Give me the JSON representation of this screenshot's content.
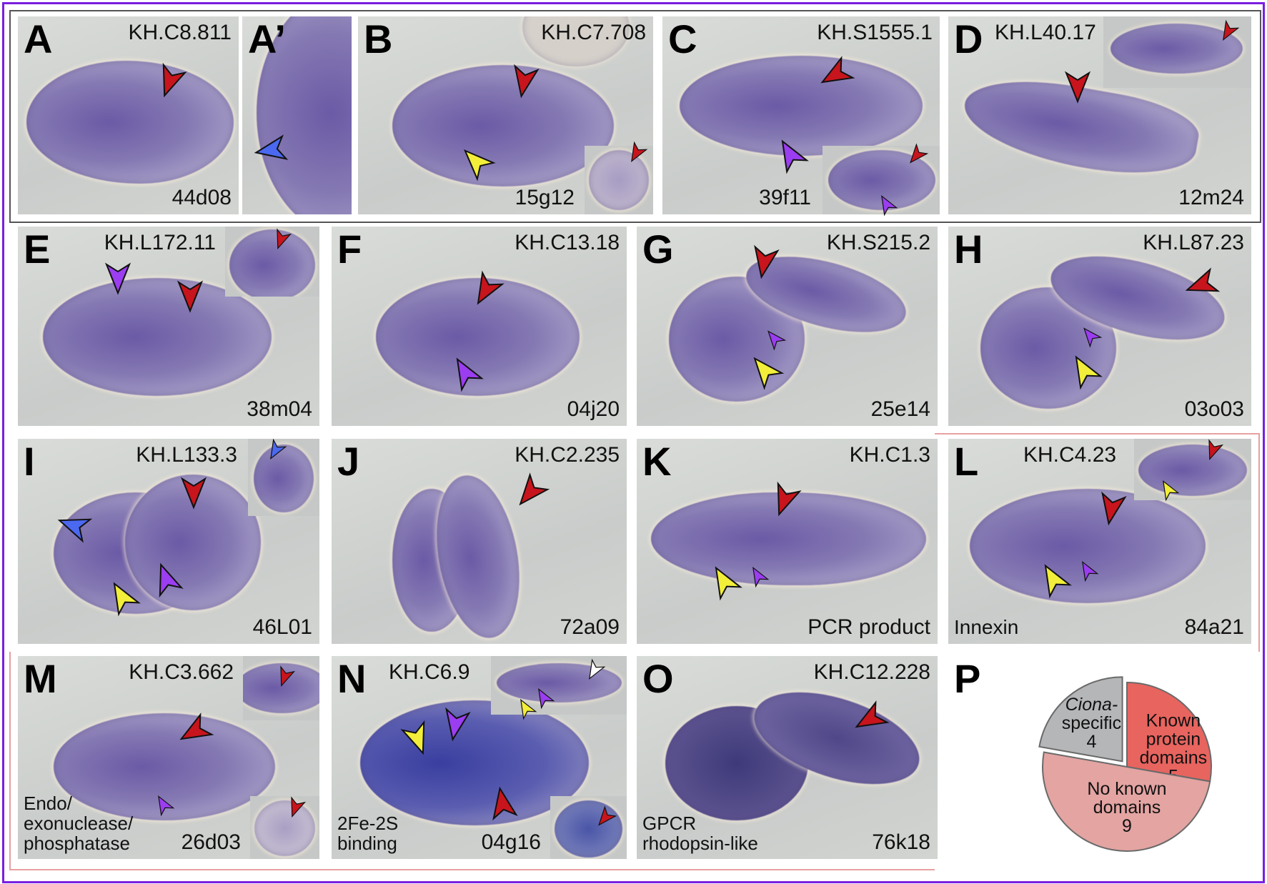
{
  "colors": {
    "frame": "#7a1fe0",
    "red": "#c8141c",
    "yellow": "#f2ee3a",
    "purple": "#9b3df0",
    "blue": "#4a68f0",
    "group_box_gray": "#555555",
    "group_box_pink": "#e8a0a0"
  },
  "panels": {
    "A": {
      "letter": "A",
      "gene": "KH.C8.811",
      "clone": "44d08"
    },
    "A2": {
      "letter": "A’"
    },
    "B": {
      "letter": "B",
      "gene": "KH.C7.708",
      "clone": "15g12"
    },
    "C": {
      "letter": "C",
      "gene": "KH.S1555.1",
      "clone": "39f11"
    },
    "D": {
      "letter": "D",
      "gene": "KH.L40.17",
      "clone": "12m24"
    },
    "E": {
      "letter": "E",
      "gene": "KH.L172.11",
      "clone": "38m04"
    },
    "F": {
      "letter": "F",
      "gene": "KH.C13.18",
      "clone": "04j20"
    },
    "G": {
      "letter": "G",
      "gene": "KH.S215.2",
      "clone": "25e14"
    },
    "H": {
      "letter": "H",
      "gene": "KH.L87.23",
      "clone": "03o03"
    },
    "I": {
      "letter": "I",
      "gene": "KH.L133.3",
      "clone": "46L01"
    },
    "J": {
      "letter": "J",
      "gene": "KH.C2.235",
      "clone": "72a09"
    },
    "K": {
      "letter": "K",
      "gene": "KH.C1.3",
      "clone": "PCR product"
    },
    "L": {
      "letter": "L",
      "gene": "KH.C4.23",
      "clone": "84a21",
      "annotation": "Innexin"
    },
    "M": {
      "letter": "M",
      "gene": "KH.C3.662",
      "clone": "26d03",
      "annotation": "Endo/\nexonuclease/\nphosphatase"
    },
    "N": {
      "letter": "N",
      "gene": "KH.C6.9",
      "clone": "04g16",
      "annotation": "2Fe-2S\nbinding"
    },
    "O": {
      "letter": "O",
      "gene": "KH.C12.228",
      "clone": "76k18",
      "annotation": "GPCR\nrhodopsin-like"
    },
    "P": {
      "letter": "P"
    }
  },
  "chart_data": {
    "type": "pie",
    "slices": [
      {
        "label": "Known protein domains",
        "lines": [
          "Known",
          "protein",
          "domains"
        ],
        "value": 5,
        "color": "#e8645f"
      },
      {
        "label": "No known domains",
        "lines": [
          "No known",
          "domains"
        ],
        "value": 9,
        "color": "#e3a4a2"
      },
      {
        "label": "Ciona-specific",
        "lines": [
          "Ciona-",
          "specific"
        ],
        "italic_part": "Ciona",
        "value": 4,
        "color": "#b4b6b8",
        "exploded": true
      }
    ]
  }
}
